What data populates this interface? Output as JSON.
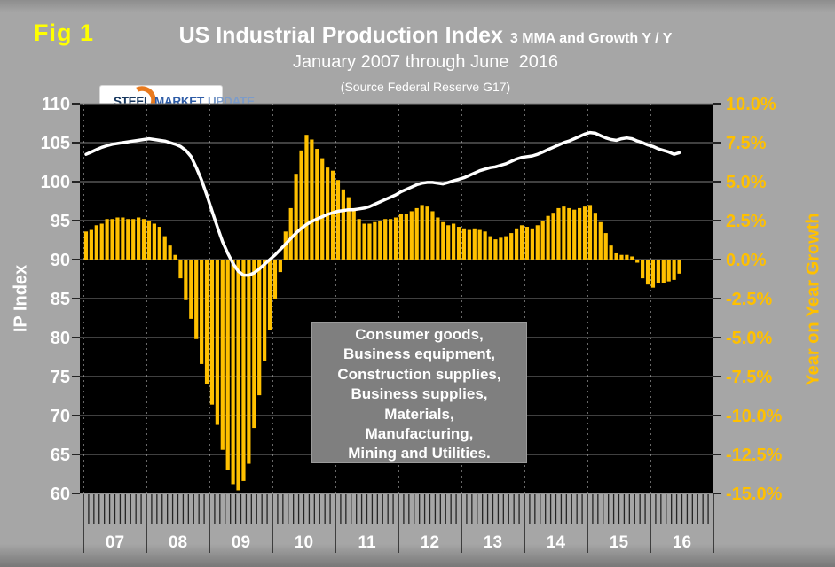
{
  "figure": {
    "fig_label": "Fig 1",
    "title_main": "US Industrial Production Index",
    "title_suffix": "3 MMA and Growth Y / Y",
    "subtitle": "January 2007 through June  2016",
    "source": "(Source Federal Reserve G17)"
  },
  "logo": {
    "word1": "STEEL",
    "word2": "MARKET",
    "word3": "UPDATE"
  },
  "annotation": {
    "lines": [
      "Consumer goods,",
      "Business equipment,",
      "Construction supplies,",
      "Business supplies,",
      "Materials,",
      "Manufacturing,",
      "Mining and Utilities."
    ]
  },
  "colors": {
    "background": "#a6a6a6",
    "plot_background": "#000000",
    "bar": "#ffc000",
    "line": "#ffffff",
    "fig_label": "#ffff00",
    "left_axis_text": "#ffffff",
    "right_axis_text": "#ffc000",
    "gridline": "#7f7f7f",
    "year_gridline_dashed": "#d0d0d0",
    "tick": "#242424",
    "annotation_bg": "#7f7f7f"
  },
  "chart_data": {
    "type": "bar+line combo, monthly",
    "title": "US Industrial Production Index 3 MMA and Growth Y / Y",
    "x_start": "2007-01",
    "x_end": "2016-06",
    "x_axis_drawn_through": "2016-12",
    "year_tick_labels": [
      "07",
      "08",
      "09",
      "10",
      "11",
      "12",
      "13",
      "14",
      "15",
      "16"
    ],
    "grid": "horizontal solid, vertical dashed at year boundaries",
    "left_axis": {
      "title": "IP Index",
      "ticks": [
        110,
        105,
        100,
        95,
        90,
        85,
        80,
        75,
        70,
        65,
        60
      ],
      "range": [
        60,
        110
      ]
    },
    "right_axis": {
      "title": "Year on Year Growth",
      "tick_labels": [
        "10.0%",
        "7.5%",
        "5.0%",
        "2.5%",
        "0.0%",
        "-2.5%",
        "-5.0%",
        "-7.5%",
        "-10.0%",
        "-12.5%",
        "-15.0%"
      ],
      "range_pct": [
        -15,
        10
      ]
    },
    "series": [
      {
        "name": "IP Index",
        "type": "line",
        "axis": "left",
        "color": "#ffffff",
        "values": [
          103.5,
          103.8,
          104.1,
          104.4,
          104.6,
          104.8,
          104.9,
          105.0,
          105.1,
          105.2,
          105.3,
          105.4,
          105.5,
          105.4,
          105.3,
          105.2,
          105.0,
          104.8,
          104.5,
          104.0,
          103.2,
          101.8,
          100.2,
          98.3,
          96.2,
          94.2,
          92.3,
          90.8,
          89.5,
          88.5,
          88.0,
          88.0,
          88.3,
          88.8,
          89.4,
          90.0,
          90.6,
          91.3,
          92.0,
          92.7,
          93.4,
          94.0,
          94.5,
          94.9,
          95.2,
          95.5,
          95.8,
          96.0,
          96.2,
          96.3,
          96.4,
          96.4,
          96.5,
          96.6,
          96.8,
          97.1,
          97.4,
          97.7,
          98.0,
          98.3,
          98.7,
          99.0,
          99.3,
          99.6,
          99.8,
          99.9,
          99.9,
          99.8,
          99.7,
          99.9,
          100.1,
          100.3,
          100.5,
          100.8,
          101.1,
          101.4,
          101.6,
          101.8,
          101.9,
          102.1,
          102.3,
          102.6,
          102.9,
          103.1,
          103.2,
          103.3,
          103.5,
          103.8,
          104.1,
          104.4,
          104.7,
          105.0,
          105.2,
          105.5,
          105.8,
          106.1,
          106.3,
          106.2,
          105.9,
          105.6,
          105.4,
          105.3,
          105.5,
          105.6,
          105.5,
          105.2,
          105.0,
          104.7,
          104.5,
          104.2,
          104.0,
          103.8,
          103.5,
          103.7
        ]
      },
      {
        "name": "Year on Year Growth",
        "type": "bar",
        "axis": "right",
        "color": "#ffc000",
        "values_pct": [
          1.8,
          1.9,
          2.2,
          2.3,
          2.6,
          2.6,
          2.7,
          2.7,
          2.6,
          2.6,
          2.7,
          2.6,
          2.5,
          2.3,
          2.1,
          1.5,
          0.9,
          0.3,
          -1.2,
          -2.6,
          -3.8,
          -5.1,
          -6.7,
          -8.0,
          -9.3,
          -10.6,
          -12.2,
          -13.5,
          -14.4,
          -14.8,
          -14.2,
          -13.1,
          -10.8,
          -8.7,
          -6.5,
          -4.5,
          -2.5,
          -0.8,
          1.8,
          3.3,
          5.5,
          7.0,
          8.0,
          7.7,
          7.1,
          6.5,
          5.9,
          5.7,
          5.1,
          4.5,
          4.0,
          3.3,
          2.6,
          2.3,
          2.3,
          2.4,
          2.5,
          2.6,
          2.6,
          2.7,
          2.9,
          2.9,
          3.1,
          3.3,
          3.5,
          3.4,
          3.1,
          2.7,
          2.4,
          2.2,
          2.3,
          2.1,
          2.0,
          1.9,
          2.0,
          1.9,
          1.8,
          1.5,
          1.3,
          1.4,
          1.5,
          1.7,
          2.0,
          2.2,
          2.1,
          2.0,
          2.2,
          2.5,
          2.8,
          3.0,
          3.3,
          3.4,
          3.3,
          3.2,
          3.3,
          3.4,
          3.5,
          3.0,
          2.4,
          1.7,
          0.9,
          0.4,
          0.3,
          0.3,
          0.2,
          -0.2,
          -1.2,
          -1.6,
          -1.8,
          -1.5,
          -1.5,
          -1.4,
          -1.3,
          -0.9
        ]
      }
    ]
  }
}
